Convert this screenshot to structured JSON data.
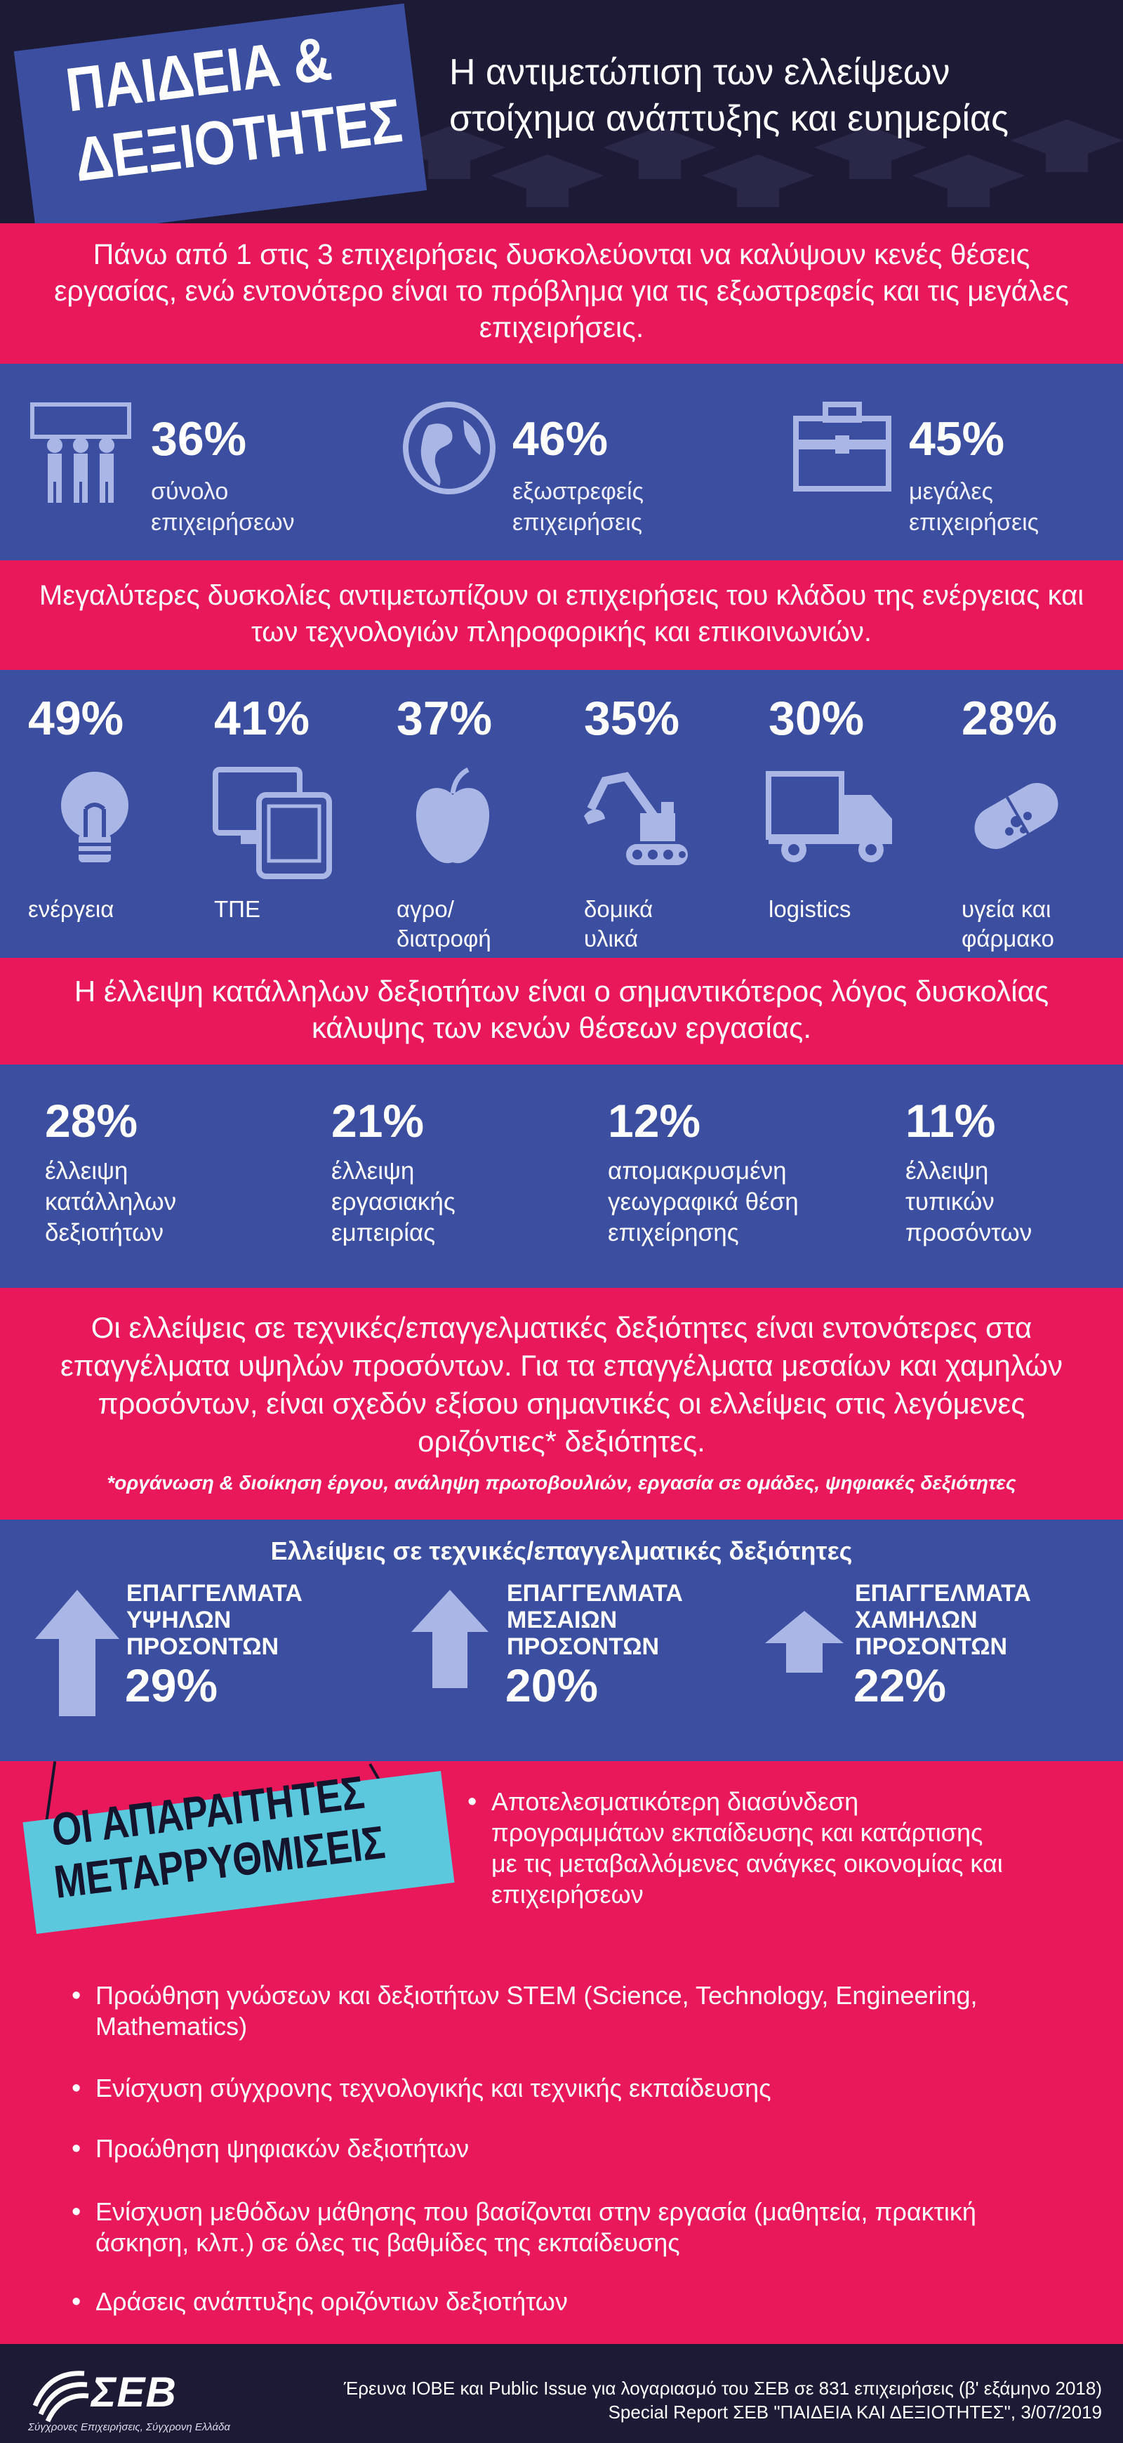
{
  "header": {
    "logo_line1": "ΠΑΙΔΕΙΑ &",
    "logo_line2": "ΔΕΞΙΟΤΗΤΕΣ",
    "subtitle_line1": "Η αντιμετώπιση των ελλείψεων",
    "subtitle_line2": "στοίχημα ανάπτυξης και ευημερίας"
  },
  "section1": {
    "text": "Πάνω από 1 στις 3 επιχειρήσεις δυσκολεύονται να καλύψουν κενές θέσεις εργασίας, ενώ εντονότερο είναι το πρόβλημα για τις εξωστρεφείς και τις μεγάλες επιχειρήσεις."
  },
  "stats": [
    {
      "pct": "36%",
      "label_line1": "σύνολο",
      "label_line2": "επιχειρήσεων",
      "icon": "people-icon"
    },
    {
      "pct": "46%",
      "label_line1": "εξωστρεφείς",
      "label_line2": "επιχειρήσεις",
      "icon": "globe-icon"
    },
    {
      "pct": "45%",
      "label_line1": "μεγάλες",
      "label_line2": "επιχειρήσεις",
      "icon": "briefcase-icon"
    }
  ],
  "section3": {
    "text": "Μεγαλύτερες δυσκολίες αντιμετωπίζουν οι επιχειρήσεις του κλάδου της ενέργειας και των τεχνολογιών πληροφορικής και επικοινωνιών."
  },
  "sectors": [
    {
      "pct": "49%",
      "label_line1": "ενέργεια",
      "label_line2": "",
      "icon": "lightbulb-icon"
    },
    {
      "pct": "41%",
      "label_line1": "ΤΠΕ",
      "label_line2": "",
      "icon": "devices-icon"
    },
    {
      "pct": "37%",
      "label_line1": "αγρο/",
      "label_line2": "διατροφή",
      "icon": "apple-icon"
    },
    {
      "pct": "35%",
      "label_line1": "δομικά",
      "label_line2": "υλικά",
      "icon": "excavator-icon"
    },
    {
      "pct": "30%",
      "label_line1": "logistics",
      "label_line2": "",
      "icon": "truck-icon"
    },
    {
      "pct": "28%",
      "label_line1": "υγεία και",
      "label_line2": "φάρμακο",
      "icon": "pill-icon"
    }
  ],
  "section5": {
    "text": "Η έλλειψη κατάλληλων δεξιοτήτων είναι ο σημαντικότερος λόγος δυσκολίας κάλυψης των κενών θέσεων εργασίας."
  },
  "reasons": [
    {
      "pct": "28%",
      "l1": "έλλειψη",
      "l2": "κατάλληλων",
      "l3": "δεξιοτήτων"
    },
    {
      "pct": "21%",
      "l1": "έλλειψη",
      "l2": "εργασιακής",
      "l3": "εμπειρίας"
    },
    {
      "pct": "12%",
      "l1": "απομακρυσμένη",
      "l2": "γεωγραφικά θέση",
      "l3": "επιχείρησης"
    },
    {
      "pct": "11%",
      "l1": "έλλειψη",
      "l2": "τυπικών",
      "l3": "προσόντων"
    }
  ],
  "section7": {
    "text": "Οι ελλείψεις σε τεχνικές/επαγγελματικές δεξιότητες είναι εντονότερες στα επαγγέλματα υψηλών προσόντων. Για τα επαγγέλματα μεσαίων και χαμηλών προσόντων, είναι σχεδόν εξίσου σημαντικές οι ελλείψεις στις λεγόμενες οριζόντιες* δεξιότητες.",
    "note": "*οργάνωση & διοίκηση έργου, ανάληψη πρωτοβουλιών, εργασία σε ομάδες, ψηφιακές δεξιότητες"
  },
  "levels": {
    "title": "Ελλείψεις σε τεχνικές/επαγγελματικές δεξιότητες",
    "items": [
      {
        "l1": "ΕΠΑΓΓΕΛΜΑΤΑ",
        "l2": "ΥΨΗΛΩΝ",
        "l3": "ΠΡΟΣΟΝΤΩΝ",
        "pct": "29%",
        "icon": "arrow-up-large-icon"
      },
      {
        "l1": "ΕΠΑΓΓΕΛΜΑΤΑ",
        "l2": "ΜΕΣΑΙΩΝ",
        "l3": "ΠΡΟΣΟΝΤΩΝ",
        "pct": "20%",
        "icon": "arrow-up-medium-icon"
      },
      {
        "l1": "ΕΠΑΓΓΕΛΜΑΤΑ",
        "l2": "ΧΑΜΗΛΩΝ",
        "l3": "ΠΡΟΣΟΝΤΩΝ",
        "pct": "22%",
        "icon": "arrow-up-small-icon"
      }
    ]
  },
  "reforms": {
    "tag_line1": "ΟΙ ΑΠΑΡΑΙΤΗΤΕΣ",
    "tag_line2": "ΜΕΤΑΡΡΥΘΜΙΣΕΙΣ",
    "first_l1": "Αποτελεσματικότερη διασύνδεση",
    "first_l2": "προγραμμάτων εκπαίδευσης και κατάρτισης",
    "first_l3": "με τις μεταβαλλόμενες ανάγκες οικονομίας και",
    "first_l4": "επιχειρήσεων",
    "b2_l1": "Προώθηση γνώσεων και δεξιοτήτων STEM (Science, Technology, Engineering,",
    "b2_l2": "Mathematics)",
    "b3": "Ενίσχυση σύγχρονης τεχνολογικής και τεχνικής εκπαίδευσης",
    "b4": "Προώθηση ψηφιακών δεξιοτήτων",
    "b5_l1": "Ενίσχυση μεθόδων μάθησης που βασίζονται στην εργασία (μαθητεία, πρακτική",
    "b5_l2": "άσκηση, κλπ.) σε όλες τις βαθμίδες της εκπαίδευσης",
    "b6": "Δράσεις ανάπτυξης οριζόντιων δεξιοτήτων"
  },
  "footer": {
    "logo": "ΣΕΒ",
    "tagline": "Σύγχρονες Επιχειρήσεις, Σύγχρονη Ελλάδα",
    "source_l1": "Έρευνα ΙΟΒΕ και Public Issue για λογαριασμό του ΣΕΒ σε 831 επιχειρήσεις (β' εξάμηνο 2018)",
    "source_l2": "Special Report ΣΕΒ \"ΠΑΙΔΕΙΑ ΚΑΙ ΔΕΞΙΟΤΗΤΕΣ\", 3/07/2019"
  },
  "colors": {
    "pink": "#e8185a",
    "blue": "#3b4ea0",
    "dark": "#1c1a35",
    "cyan": "#5bc8de",
    "icon": "#a9b6e6"
  }
}
